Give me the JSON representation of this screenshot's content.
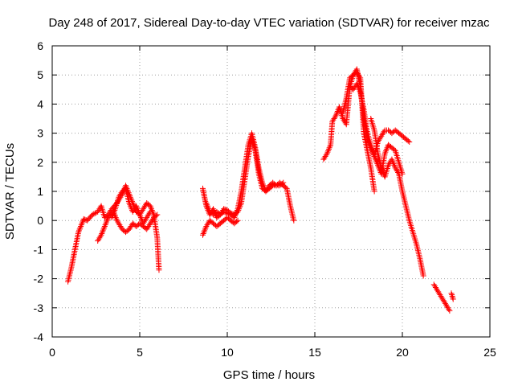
{
  "chart_data": {
    "type": "scatter",
    "title": "Day 248 of 2017, Sidereal Day-to-day VTEC variation (SDTVAR) for receiver mzac",
    "xlabel": "GPS time / hours",
    "ylabel": "SDTVAR / TECUs",
    "xlim": [
      0,
      25
    ],
    "ylim": [
      -4,
      6
    ],
    "xticks": [
      0,
      5,
      10,
      15,
      20,
      25
    ],
    "yticks": [
      -4,
      -3,
      -2,
      -1,
      0,
      1,
      2,
      3,
      4,
      5,
      6
    ],
    "grid": true,
    "marker": "+",
    "series": [
      {
        "name": "SDTVAR",
        "color": "#ff0000",
        "segments": [
          {
            "x": [
              0.9,
              1.1,
              1.3,
              1.5,
              1.7,
              1.8,
              2.0,
              2.3,
              2.6,
              2.8,
              3.0,
              3.2,
              3.4,
              3.7,
              4.0,
              4.2,
              4.4,
              4.6,
              4.8,
              5.0,
              5.2,
              5.4,
              5.6,
              5.8,
              6.0,
              6.1
            ],
            "y": [
              -2.1,
              -1.6,
              -1.0,
              -0.4,
              -0.1,
              0.05,
              0.0,
              0.2,
              0.3,
              0.5,
              0.1,
              0.2,
              0.4,
              0.6,
              0.9,
              1.2,
              0.9,
              0.6,
              0.3,
              0.2,
              0.4,
              0.6,
              0.5,
              0.2,
              -0.6,
              -1.7
            ]
          },
          {
            "x": [
              2.6,
              2.8,
              3.0,
              3.2,
              3.5,
              3.7,
              4.0,
              4.2,
              4.4,
              4.6,
              4.8,
              5.0,
              5.2,
              5.4,
              5.6,
              5.8,
              6.0
            ],
            "y": [
              -0.7,
              -0.5,
              -0.2,
              0.1,
              0.3,
              0.0,
              -0.3,
              -0.4,
              -0.3,
              -0.1,
              -0.2,
              -0.1,
              -0.2,
              -0.3,
              -0.1,
              0.1,
              0.2
            ]
          },
          {
            "x": [
              3.4,
              3.6,
              3.8,
              4.0,
              4.2,
              4.4,
              4.6,
              4.8,
              5.0,
              5.2,
              5.4,
              5.6
            ],
            "y": [
              0.1,
              0.4,
              0.8,
              1.0,
              1.1,
              0.6,
              0.3,
              0.5,
              0.2,
              -0.1,
              0.1,
              0.3
            ]
          },
          {
            "x": [
              8.6,
              8.7,
              8.8,
              9.0,
              9.2,
              9.4,
              9.6,
              9.8,
              10.0,
              10.2,
              10.4,
              10.6,
              10.8,
              11.0,
              11.2,
              11.4,
              11.6,
              11.8,
              12.0,
              12.2,
              12.4,
              12.6,
              12.8,
              13.0,
              13.2,
              13.4,
              13.6,
              13.8
            ],
            "y": [
              1.1,
              0.8,
              0.5,
              0.2,
              0.4,
              0.1,
              0.2,
              0.3,
              0.25,
              0.2,
              0.1,
              0.4,
              1.0,
              1.8,
              2.6,
              3.0,
              2.5,
              1.8,
              1.3,
              1.0,
              1.1,
              1.2,
              1.2,
              1.3,
              1.2,
              1.1,
              0.5,
              0.0
            ]
          },
          {
            "x": [
              8.6,
              8.8,
              9.0,
              9.2,
              9.4,
              9.6,
              9.8,
              10.0,
              10.2,
              10.4,
              10.6
            ],
            "y": [
              -0.5,
              -0.2,
              0.0,
              -0.1,
              -0.2,
              -0.1,
              0.0,
              0.1,
              0.0,
              -0.1,
              0.0
            ]
          },
          {
            "x": [
              8.8,
              9.0,
              9.2,
              9.4,
              9.6,
              9.8,
              10.0,
              10.2,
              10.4,
              10.6,
              10.8,
              11.0,
              11.2,
              11.4,
              11.6,
              11.8,
              12.0,
              12.2,
              12.4,
              12.6,
              12.8,
              13.0,
              13.2
            ],
            "y": [
              0.6,
              0.3,
              0.2,
              0.3,
              0.2,
              0.4,
              0.35,
              0.25,
              0.2,
              0.3,
              0.6,
              1.4,
              2.2,
              2.8,
              2.4,
              1.6,
              1.1,
              1.0,
              1.2,
              1.3,
              1.2,
              1.2,
              1.3
            ]
          },
          {
            "x": [
              15.5,
              15.7,
              15.9,
              16.0,
              16.2,
              16.4,
              16.6,
              16.8,
              17.0,
              17.2,
              17.4,
              17.6,
              17.8,
              18.0,
              18.2,
              18.4
            ],
            "y": [
              2.1,
              2.3,
              2.6,
              3.4,
              3.6,
              3.9,
              3.5,
              3.3,
              4.6,
              5.0,
              5.1,
              4.9,
              3.0,
              2.4,
              1.8,
              1.0
            ]
          },
          {
            "x": [
              16.6,
              16.8,
              17.0,
              17.2,
              17.4,
              17.6,
              17.8,
              18.0,
              18.2,
              18.4,
              18.6,
              18.8,
              19.0,
              19.2,
              19.4,
              19.6,
              19.8,
              20.0,
              20.2,
              20.4
            ],
            "y": [
              3.7,
              4.2,
              4.9,
              5.0,
              5.2,
              4.6,
              3.5,
              2.8,
              2.5,
              2.2,
              2.7,
              2.9,
              3.1,
              3.1,
              3.0,
              3.1,
              3.0,
              2.9,
              2.8,
              2.7
            ]
          },
          {
            "x": [
              17.0,
              17.2,
              17.4,
              17.6,
              17.8,
              18.0,
              18.2,
              18.4,
              18.6,
              18.8,
              19.0,
              19.2,
              19.4,
              19.6,
              19.8,
              20.0
            ],
            "y": [
              4.6,
              4.5,
              4.7,
              4.4,
              3.8,
              3.0,
              2.6,
              2.2,
              1.9,
              1.6,
              2.3,
              2.6,
              2.5,
              2.4,
              2.0,
              1.6
            ]
          },
          {
            "x": [
              18.2,
              18.4,
              18.6,
              18.8,
              19.0,
              19.2,
              19.4,
              19.6,
              19.8,
              20.0,
              20.2,
              20.4,
              20.6,
              20.8,
              21.0,
              21.2
            ],
            "y": [
              3.5,
              3.1,
              2.3,
              1.8,
              1.5,
              1.9,
              2.1,
              1.8,
              1.6,
              1.0,
              0.5,
              0.0,
              -0.4,
              -0.8,
              -1.3,
              -1.9
            ]
          },
          {
            "x": [
              21.8,
              22.0,
              22.2,
              22.4,
              22.6,
              22.7
            ],
            "y": [
              -2.2,
              -2.4,
              -2.6,
              -2.8,
              -3.0,
              -3.1
            ]
          },
          {
            "x": [
              22.8,
              22.9
            ],
            "y": [
              -2.5,
              -2.7
            ]
          }
        ]
      }
    ]
  }
}
